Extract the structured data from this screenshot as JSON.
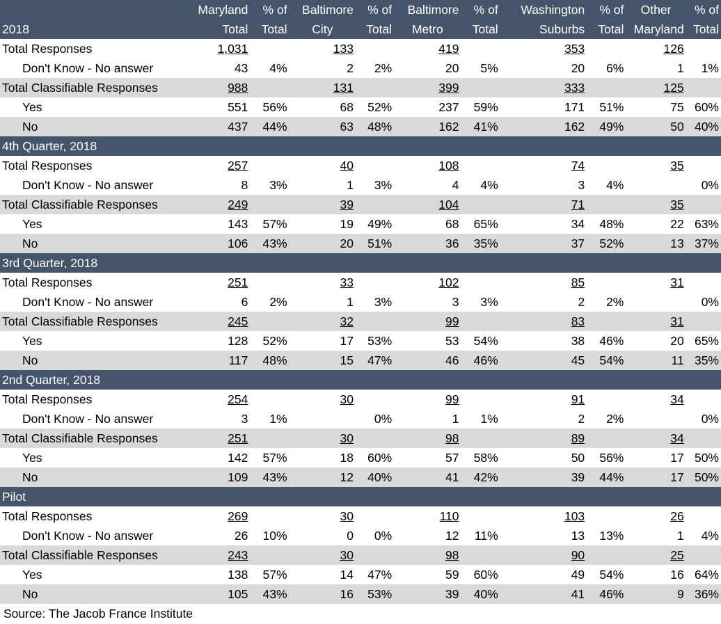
{
  "header": {
    "year": "2018",
    "columns": [
      {
        "line1": "Maryland",
        "line2": "Total"
      },
      {
        "line1": "% of",
        "line2": "Total"
      },
      {
        "line1": "Baltimore",
        "line2": "City"
      },
      {
        "line1": "% of",
        "line2": "Total"
      },
      {
        "line1": "Baltimore",
        "line2": "Metro"
      },
      {
        "line1": "% of",
        "line2": "Total"
      },
      {
        "line1": "Washington",
        "line2": "Suburbs"
      },
      {
        "line1": "% of",
        "line2": "Total"
      },
      {
        "line1": "Other",
        "line2": "Maryland"
      },
      {
        "line1": "% of",
        "line2": "Total"
      }
    ]
  },
  "sections": [
    {
      "title": "",
      "rows": [
        {
          "label": "Total Responses",
          "cells": [
            "1,031",
            "",
            "133",
            "",
            "419",
            "",
            "353",
            "",
            "126",
            ""
          ]
        },
        {
          "label": "Don't Know - No answer",
          "cells": [
            "43",
            "4%",
            "2",
            "2%",
            "20",
            "5%",
            "20",
            "6%",
            "1",
            "1%"
          ]
        },
        {
          "label": "Total Classifiable Responses",
          "cells": [
            "988",
            "",
            "131",
            "",
            "399",
            "",
            "333",
            "",
            "125",
            ""
          ]
        },
        {
          "label": "Yes",
          "cells": [
            "551",
            "56%",
            "68",
            "52%",
            "237",
            "59%",
            "171",
            "51%",
            "75",
            "60%"
          ]
        },
        {
          "label": "No",
          "cells": [
            "437",
            "44%",
            "63",
            "48%",
            "162",
            "41%",
            "162",
            "49%",
            "50",
            "40%"
          ]
        }
      ]
    },
    {
      "title": "4th Quarter, 2018",
      "rows": [
        {
          "label": "Total Responses",
          "cells": [
            "257",
            "",
            "40",
            "",
            "108",
            "",
            "74",
            "",
            "35",
            ""
          ]
        },
        {
          "label": "Don't Know - No answer",
          "cells": [
            "8",
            "3%",
            "1",
            "3%",
            "4",
            "4%",
            "3",
            "4%",
            "",
            "0%"
          ]
        },
        {
          "label": "Total Classifiable Responses",
          "cells": [
            "249",
            "",
            "39",
            "",
            "104",
            "",
            "71",
            "",
            "35",
            ""
          ]
        },
        {
          "label": "Yes",
          "cells": [
            "143",
            "57%",
            "19",
            "49%",
            "68",
            "65%",
            "34",
            "48%",
            "22",
            "63%"
          ]
        },
        {
          "label": "No",
          "cells": [
            "106",
            "43%",
            "20",
            "51%",
            "36",
            "35%",
            "37",
            "52%",
            "13",
            "37%"
          ]
        }
      ]
    },
    {
      "title": "3rd Quarter, 2018",
      "rows": [
        {
          "label": "Total Responses",
          "cells": [
            "251",
            "",
            "33",
            "",
            "102",
            "",
            "85",
            "",
            "31",
            ""
          ]
        },
        {
          "label": "Don't Know - No answer",
          "cells": [
            "6",
            "2%",
            "1",
            "3%",
            "3",
            "3%",
            "2",
            "2%",
            "",
            "0%"
          ]
        },
        {
          "label": "Total Classifiable Responses",
          "cells": [
            "245",
            "",
            "32",
            "",
            "99",
            "",
            "83",
            "",
            "31",
            ""
          ]
        },
        {
          "label": "Yes",
          "cells": [
            "128",
            "52%",
            "17",
            "53%",
            "53",
            "54%",
            "38",
            "46%",
            "20",
            "65%"
          ]
        },
        {
          "label": "No",
          "cells": [
            "117",
            "48%",
            "15",
            "47%",
            "46",
            "46%",
            "45",
            "54%",
            "11",
            "35%"
          ]
        }
      ]
    },
    {
      "title": "2nd Quarter, 2018",
      "rows": [
        {
          "label": "Total Responses",
          "cells": [
            "254",
            "",
            "30",
            "",
            "99",
            "",
            "91",
            "",
            "34",
            ""
          ]
        },
        {
          "label": "Don't Know - No answer",
          "cells": [
            "3",
            "1%",
            "",
            "0%",
            "1",
            "1%",
            "2",
            "2%",
            "",
            "0%"
          ]
        },
        {
          "label": "Total Classifiable Responses",
          "cells": [
            "251",
            "",
            "30",
            "",
            "98",
            "",
            "89",
            "",
            "34",
            ""
          ]
        },
        {
          "label": "Yes",
          "cells": [
            "142",
            "57%",
            "18",
            "60%",
            "57",
            "58%",
            "50",
            "56%",
            "17",
            "50%"
          ]
        },
        {
          "label": "No",
          "cells": [
            "109",
            "43%",
            "12",
            "40%",
            "41",
            "42%",
            "39",
            "44%",
            "17",
            "50%"
          ]
        }
      ]
    },
    {
      "title": "Pilot",
      "rows": [
        {
          "label": "Total Responses",
          "cells": [
            "269",
            "",
            "30",
            "",
            "110",
            "",
            "103",
            "",
            "26",
            ""
          ]
        },
        {
          "label": "Don't Know - No answer",
          "cells": [
            "26",
            "10%",
            "0",
            "0%",
            "12",
            "11%",
            "13",
            "13%",
            "1",
            "4%"
          ]
        },
        {
          "label": "Total Classifiable Responses",
          "cells": [
            "243",
            "",
            "30",
            "",
            "98",
            "",
            "90",
            "",
            "25",
            ""
          ]
        },
        {
          "label": "Yes",
          "cells": [
            "138",
            "57%",
            "14",
            "47%",
            "59",
            "60%",
            "49",
            "54%",
            "16",
            "64%"
          ]
        },
        {
          "label": "No",
          "cells": [
            "105",
            "43%",
            "16",
            "53%",
            "39",
            "40%",
            "41",
            "46%",
            "9",
            "36%"
          ]
        }
      ]
    }
  ],
  "footer": {
    "source": "Source: The Jacob France Institute"
  },
  "colors": {
    "header_bg": "#44546a",
    "shade_bg": "#d9d9d9",
    "header_text": "#ffffff"
  }
}
